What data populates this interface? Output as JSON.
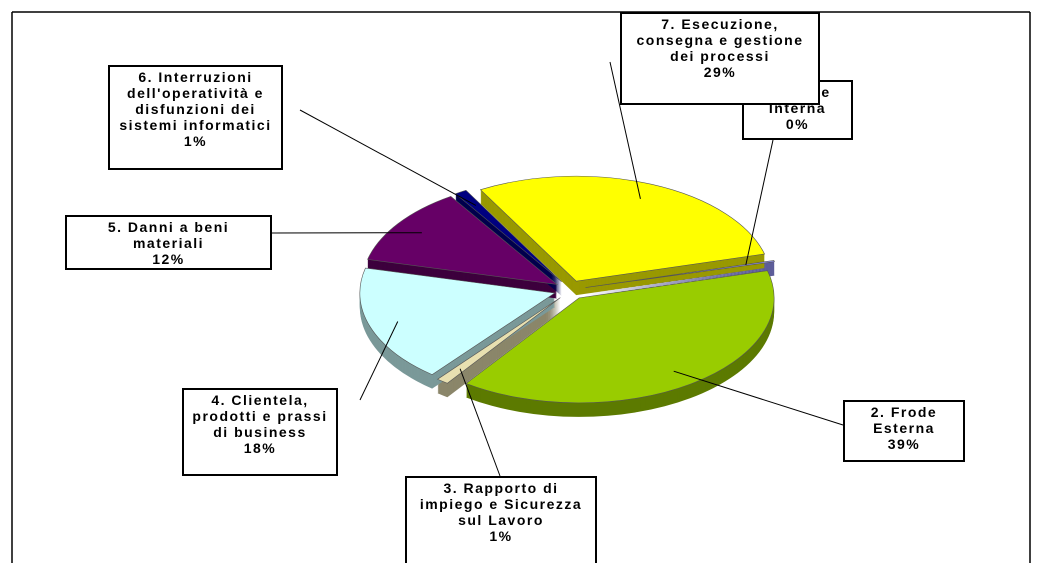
{
  "chart_data": {
    "type": "pie",
    "categories": [
      "1. Frode Interna",
      "2. Frode Esterna",
      "3. Rapporto di impiego e Sicurezza sul Lavoro",
      "4. Clientela, prodotti e prassi di business",
      "5. Danni a beni materiali",
      "6. Interruzioni dell'operatività e disfunzioni dei sistemi informatici",
      "7. Esecuzione, consegna e gestione dei processi"
    ],
    "values": [
      0,
      39,
      1,
      18,
      12,
      1,
      29
    ],
    "value_labels": [
      "0%",
      "39%",
      "1%",
      "18%",
      "12%",
      "1%",
      "29%"
    ],
    "colors": [
      "#9999ff",
      "#99cc00",
      "#e8e0b0",
      "#ccffff",
      "#660066",
      "#000080",
      "#ffff00"
    ]
  }
}
